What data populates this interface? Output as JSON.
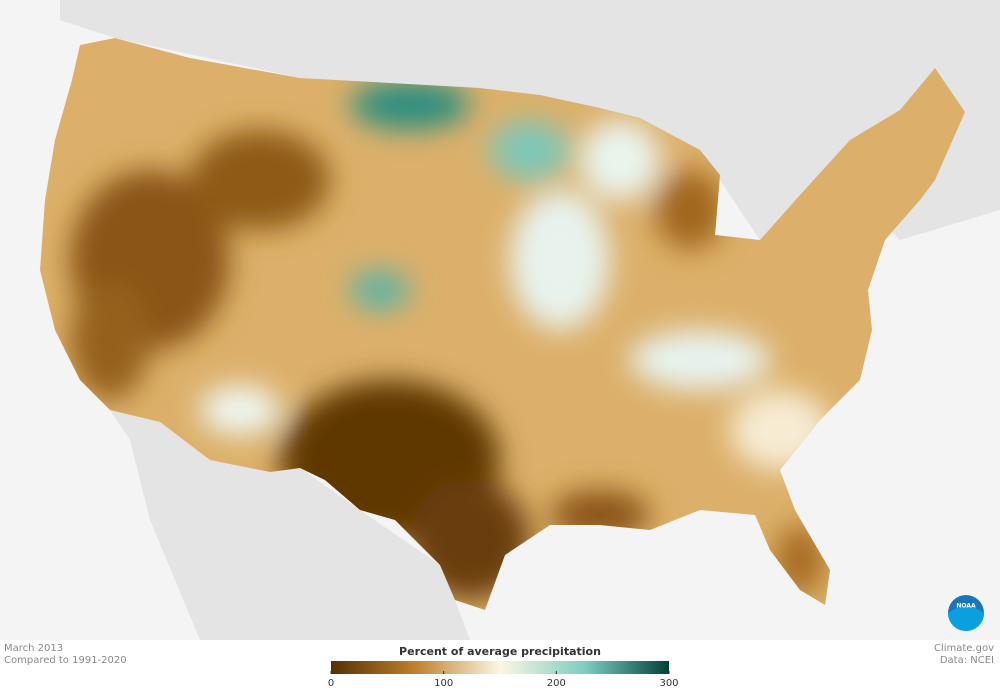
{
  "header": {
    "date": "March 2013",
    "baseline": "Compared to 1991-2020"
  },
  "legend": {
    "title": "Percent of average precipitation",
    "range": [
      0,
      300
    ],
    "ticks": [
      0,
      100,
      200,
      300
    ],
    "colors": [
      "#543005",
      "#bf812d",
      "#fdf6e3",
      "#80cdc1",
      "#01423a"
    ]
  },
  "credits": {
    "site": "Climate.gov",
    "source": "Data: NCEI",
    "logo": "NOAA"
  }
}
